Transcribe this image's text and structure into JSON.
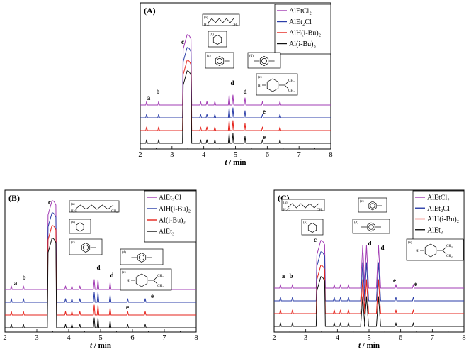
{
  "chart_data": [
    {
      "type": "line",
      "panel_label": "(A)",
      "xlabel": "t / min",
      "xlim": [
        2,
        8
      ],
      "xticks": [
        2,
        3,
        4,
        5,
        6,
        7,
        8
      ],
      "series": [
        {
          "name": "AlEtCl₂",
          "color": "#a23cb4",
          "peak_c_height": 0.95
        },
        {
          "name": "AlEt₂Cl",
          "color": "#2b3ea8",
          "peak_c_height": 0.88
        },
        {
          "name": "AlH(i-Bu)₂",
          "color": "#e5231b",
          "peak_c_height": 0.8
        },
        {
          "name": "Al(i-Bu)₃",
          "color": "#111111",
          "peak_c_height": 0.72
        }
      ],
      "structures": [
        {
          "label": "(a)",
          "mol": "octane"
        },
        {
          "label": "(b)",
          "mol": "cyclohexane"
        },
        {
          "label": "(c)",
          "mol": "toluene"
        },
        {
          "label": "(d)",
          "mol": "p-xylene"
        },
        {
          "label": "(e)",
          "mol": "limonene"
        }
      ],
      "peak_labels": [
        {
          "text": "a",
          "x": 2.2
        },
        {
          "text": "b",
          "x": 2.58
        },
        {
          "text": "c",
          "x": 3.35
        },
        {
          "text": "d",
          "x": 4.85
        },
        {
          "text": "d",
          "x": 5.3
        },
        {
          "text": "e",
          "x": 5.92
        },
        {
          "text": "e",
          "x": 5.92
        }
      ]
    },
    {
      "type": "line",
      "panel_label": "(B)",
      "xlabel": "t / min",
      "xlim": [
        2,
        8
      ],
      "xticks": [
        2,
        3,
        4,
        5,
        6,
        7,
        8
      ],
      "series": [
        {
          "name": "AlEt₂Cl",
          "color": "#a23cb4",
          "peak_c_height": 0.92
        },
        {
          "name": "AlH(i-Bu)₂",
          "color": "#2b3ea8",
          "peak_c_height": 0.85
        },
        {
          "name": "Al(i-Bu)₃",
          "color": "#e5231b",
          "peak_c_height": 0.78
        },
        {
          "name": "AlEt₃",
          "color": "#111111",
          "peak_c_height": 0.7
        }
      ],
      "structures": [
        {
          "label": "(a)",
          "mol": "octane"
        },
        {
          "label": "(b)",
          "mol": "cyclohexane"
        },
        {
          "label": "(c)",
          "mol": "toluene"
        },
        {
          "label": "(d)",
          "mol": "p-xylene"
        },
        {
          "label": "(e)",
          "mol": "limonene"
        }
      ],
      "peak_labels": [
        {
          "text": "a",
          "x": 2.3
        },
        {
          "text": "b",
          "x": 2.6
        },
        {
          "text": "c",
          "x": 3.35
        },
        {
          "text": "d",
          "x": 4.95
        },
        {
          "text": "d",
          "x": 5.3
        },
        {
          "text": "e",
          "x": 6.6
        },
        {
          "text": "e",
          "x": 5.9
        }
      ]
    },
    {
      "type": "line",
      "panel_label": "(C)",
      "xlabel": "t / min",
      "xlim": [
        2,
        8
      ],
      "xticks": [
        2,
        3,
        4,
        5,
        6,
        7,
        8
      ],
      "series": [
        {
          "name": "AlEtCl₂",
          "color": "#a23cb4",
          "peak_c_height": 0.9
        },
        {
          "name": "AlEt₂Cl",
          "color": "#2b3ea8",
          "peak_c_height": 0.82
        },
        {
          "name": "AlH(i-Bu)₂",
          "color": "#e5231b",
          "peak_c_height": 0.75
        },
        {
          "name": "AlEt₃",
          "color": "#111111",
          "peak_c_height": 0.68
        }
      ],
      "structures": [
        {
          "label": "(a)",
          "mol": "octane"
        },
        {
          "label": "(b)",
          "mol": "cyclohexane"
        },
        {
          "label": "(c)",
          "mol": "toluene"
        },
        {
          "label": "(d)",
          "mol": "p-xylene"
        },
        {
          "label": "(e)",
          "mol": "limonene"
        }
      ],
      "peak_labels": [
        {
          "text": "a",
          "x": 2.28
        },
        {
          "text": "b",
          "x": 2.55
        },
        {
          "text": "c",
          "x": 3.35
        },
        {
          "text": "d",
          "x": 4.98
        },
        {
          "text": "d",
          "x": 5.35
        },
        {
          "text": "e",
          "x": 5.85
        },
        {
          "text": "e",
          "x": 6.45
        }
      ]
    }
  ],
  "colors": {
    "purple": "#a23cb4",
    "blue": "#2b3ea8",
    "red": "#e5231b",
    "black": "#111111"
  }
}
